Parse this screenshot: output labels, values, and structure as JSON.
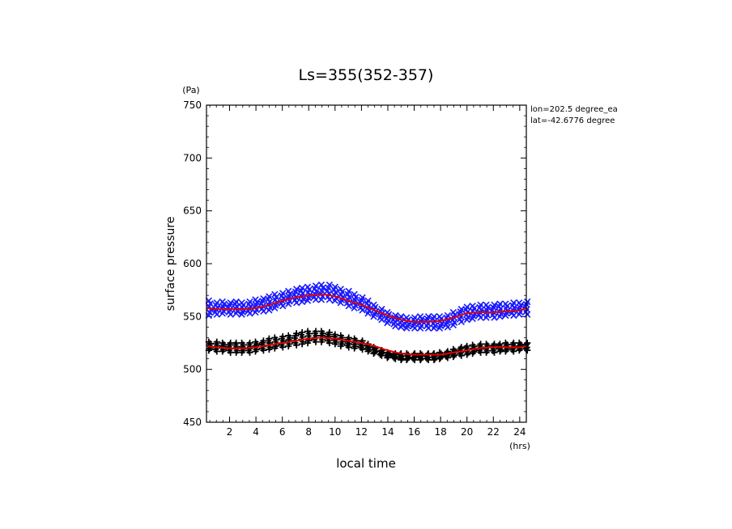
{
  "chart_data": {
    "type": "scatter",
    "title": "Ls=355(352-357)",
    "xlabel": "local time",
    "ylabel": "surface pressure",
    "x_unit": "(hrs)",
    "y_unit": "(Pa)",
    "annotations": [
      "lon=202.5 degree_ea",
      "lat=-42.6776 degree"
    ],
    "xlim": [
      0.25,
      24.5
    ],
    "ylim": [
      450,
      750
    ],
    "xticks": [
      2,
      4,
      6,
      8,
      10,
      12,
      14,
      16,
      18,
      20,
      22,
      24
    ],
    "yticks": [
      450,
      500,
      550,
      600,
      650,
      700,
      750
    ],
    "grid": false,
    "colors": {
      "blue_markers": "#1a1aff",
      "black_markers": "#000000",
      "fit": "#e00000"
    },
    "series": [
      {
        "marker": "x",
        "color": "#1a1aff",
        "x": [
          0.5,
          1.0,
          1.5,
          2.0,
          2.5,
          3.0,
          3.5,
          4.0,
          4.5,
          5.0,
          5.5,
          6.0,
          6.5,
          7.0,
          7.5,
          8.0,
          8.5,
          9.0,
          9.5,
          10.0,
          10.5,
          11.0,
          11.5,
          12.0,
          12.5,
          13.0,
          13.5,
          14.0,
          14.5,
          15.0,
          15.5,
          16.0,
          16.5,
          17.0,
          17.5,
          18.0,
          18.5,
          19.0,
          19.5,
          20.0,
          20.5,
          21.0,
          21.5,
          22.0,
          22.5,
          23.0,
          23.5,
          24.0,
          24.5
        ],
        "ymin": [
          551,
          552,
          553,
          552,
          553,
          552,
          553,
          554,
          555,
          556,
          558,
          560,
          562,
          563,
          564,
          565,
          566,
          566,
          566,
          565,
          563,
          560,
          558,
          556,
          553,
          550,
          547,
          544,
          541,
          540,
          539,
          539,
          539,
          539,
          539,
          539,
          540,
          542,
          545,
          547,
          548,
          549,
          549,
          549,
          550,
          551,
          551,
          552,
          552
        ],
        "ymax": [
          565,
          563,
          564,
          563,
          564,
          563,
          564,
          566,
          567,
          569,
          571,
          572,
          574,
          576,
          577,
          578,
          579,
          580,
          580,
          578,
          576,
          574,
          571,
          568,
          565,
          561,
          557,
          554,
          551,
          550,
          549,
          549,
          550,
          550,
          550,
          550,
          551,
          554,
          557,
          559,
          560,
          561,
          561,
          561,
          562,
          562,
          563,
          563,
          564
        ]
      },
      {
        "marker": "+",
        "color": "#000000",
        "x": [
          0.5,
          1.0,
          1.5,
          2.0,
          2.5,
          3.0,
          3.5,
          4.0,
          4.5,
          5.0,
          5.5,
          6.0,
          6.5,
          7.0,
          7.5,
          8.0,
          8.5,
          9.0,
          9.5,
          10.0,
          10.5,
          11.0,
          11.5,
          12.0,
          12.5,
          13.0,
          13.5,
          14.0,
          14.5,
          15.0,
          15.5,
          16.0,
          16.5,
          17.0,
          17.5,
          18.0,
          18.5,
          19.0,
          19.5,
          20.0,
          20.5,
          21.0,
          21.5,
          22.0,
          22.5,
          23.0,
          23.5,
          24.0,
          24.5
        ],
        "ymin": [
          518,
          517,
          517,
          516,
          516,
          516,
          516,
          517,
          518,
          519,
          520,
          521,
          522,
          523,
          524,
          525,
          526,
          526,
          525,
          524,
          522,
          521,
          520,
          519,
          517,
          515,
          513,
          511,
          510,
          509,
          509,
          509,
          509,
          509,
          509,
          510,
          511,
          512,
          513,
          514,
          515,
          516,
          516,
          516,
          517,
          517,
          517,
          518,
          518
        ],
        "ymax": [
          526,
          526,
          525,
          525,
          525,
          525,
          525,
          526,
          527,
          529,
          530,
          531,
          532,
          534,
          535,
          536,
          536,
          536,
          535,
          533,
          532,
          530,
          529,
          527,
          524,
          521,
          518,
          516,
          515,
          515,
          515,
          515,
          515,
          515,
          515,
          516,
          517,
          519,
          521,
          522,
          523,
          524,
          524,
          524,
          524,
          525,
          525,
          525,
          525
        ]
      }
    ],
    "fit_lines": [
      {
        "color": "#e00000",
        "x": [
          0.25,
          1,
          2,
          3,
          4,
          5,
          6,
          7,
          8,
          9,
          10,
          11,
          12,
          13,
          14,
          15,
          16,
          17,
          18,
          19,
          20,
          21,
          22,
          23,
          24,
          24.5
        ],
        "y": [
          558,
          557,
          557,
          557,
          558,
          561,
          565,
          568,
          570,
          571,
          569,
          565,
          561,
          556,
          551,
          547,
          545,
          545,
          546,
          549,
          553,
          554,
          554,
          555,
          556,
          558
        ]
      },
      {
        "color": "#e00000",
        "x": [
          0.25,
          1,
          2,
          3,
          4,
          5,
          6,
          7,
          8,
          9,
          10,
          11,
          12,
          13,
          14,
          15,
          16,
          17,
          18,
          19,
          20,
          21,
          22,
          23,
          24,
          24.5
        ],
        "y": [
          522,
          521,
          520,
          520,
          521,
          523,
          525,
          527,
          529,
          530,
          529,
          527,
          525,
          522,
          518,
          515,
          514,
          514,
          514,
          516,
          518,
          520,
          521,
          521,
          521,
          522
        ]
      }
    ]
  }
}
